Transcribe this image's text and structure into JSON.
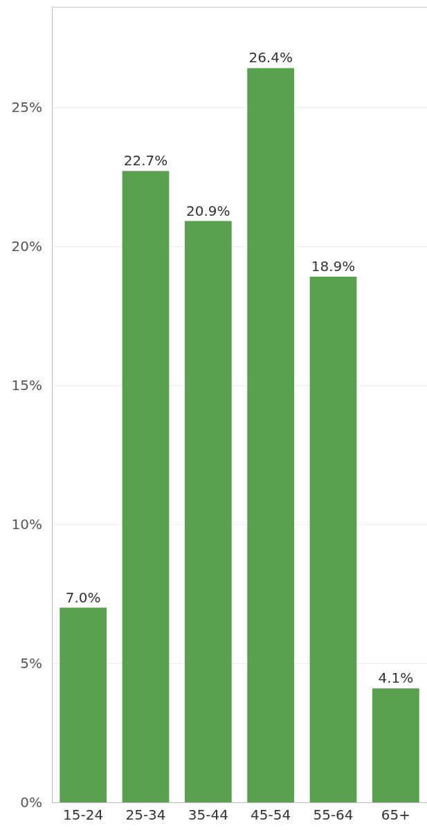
{
  "chart_data": {
    "type": "bar",
    "categories": [
      "15-24",
      "25-34",
      "35-44",
      "45-54",
      "55-64",
      "65+"
    ],
    "values": [
      7.0,
      22.7,
      20.9,
      26.4,
      18.9,
      4.1
    ],
    "value_labels": [
      "7.0%",
      "22.7%",
      "20.9%",
      "26.4%",
      "18.9%",
      "4.1%"
    ],
    "color": "#59a14f",
    "ylim": [
      0,
      28.6
    ],
    "yticks": [
      {
        "value": 0,
        "label": "0%"
      },
      {
        "value": 5,
        "label": "5%"
      },
      {
        "value": 10,
        "label": "10%"
      },
      {
        "value": 15,
        "label": "15%"
      },
      {
        "value": 20,
        "label": "20%"
      },
      {
        "value": 25,
        "label": "25%"
      }
    ],
    "grid": "y"
  }
}
